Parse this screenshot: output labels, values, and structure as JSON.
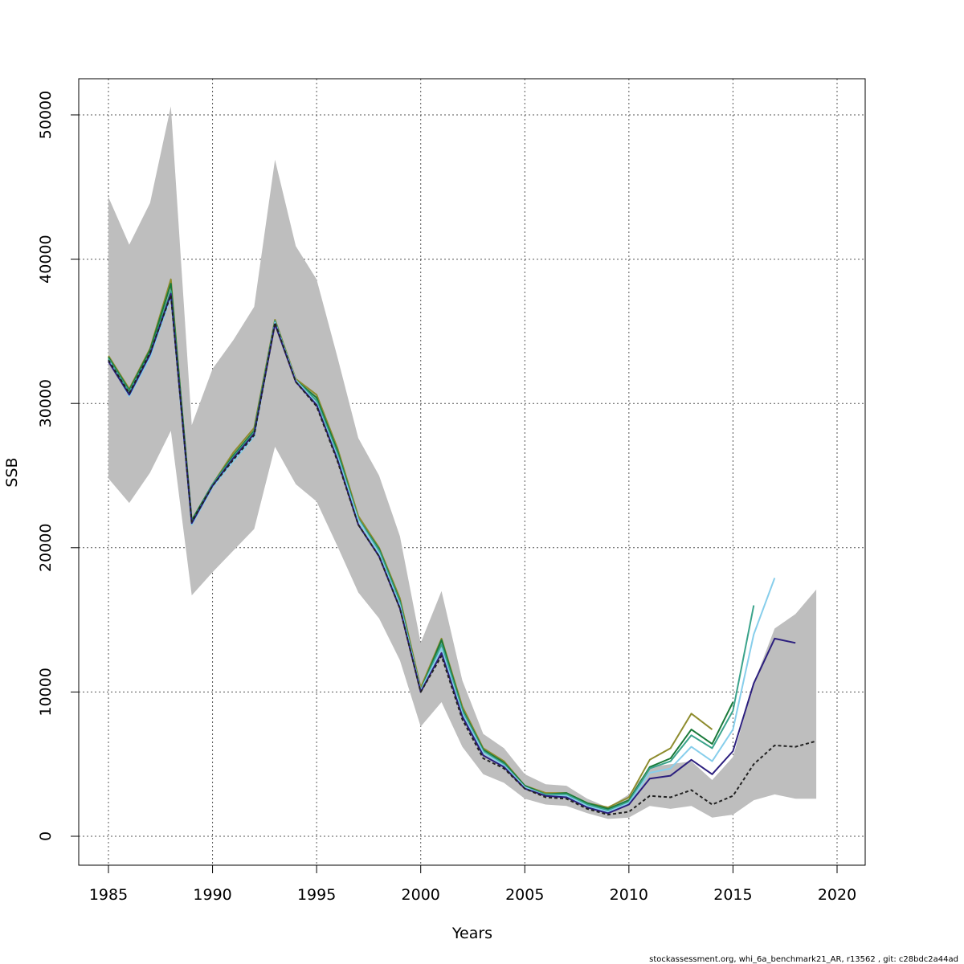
{
  "chart_data": {
    "type": "line",
    "title": "",
    "xlabel": "Years",
    "ylabel": "SSB",
    "xlim": [
      1985,
      2020
    ],
    "ylim": [
      0,
      50000
    ],
    "x_ticks": [
      1985,
      1990,
      1995,
      2000,
      2005,
      2010,
      2015,
      2020
    ],
    "y_ticks": [
      0,
      10000,
      20000,
      30000,
      40000,
      50000
    ],
    "grid": true,
    "grid_style": "dotted",
    "footer": "stockassessment.org, whi_6a_benchmark21_AR, r13562 , git: c28bdc2a44ad",
    "confidence_band": {
      "color": "#bebebe",
      "x": [
        1985,
        1986,
        1987,
        1988,
        1989,
        1990,
        1991,
        1992,
        1993,
        1994,
        1995,
        1996,
        1997,
        1998,
        1999,
        2000,
        2001,
        2002,
        2003,
        2004,
        2005,
        2006,
        2007,
        2008,
        2009,
        2010,
        2011,
        2012,
        2013,
        2014,
        2015,
        2016,
        2017,
        2018,
        2019
      ],
      "lower": [
        24800,
        23100,
        25200,
        28100,
        16700,
        18300,
        19800,
        21300,
        27000,
        24400,
        23200,
        20100,
        16900,
        15100,
        12200,
        7600,
        9300,
        6200,
        4300,
        3700,
        2600,
        2200,
        2100,
        1600,
        1200,
        1300,
        2100,
        1900,
        2100,
        1300,
        1500,
        2500,
        2900,
        2600,
        2600
      ],
      "upper": [
        44300,
        41000,
        43900,
        50600,
        28500,
        32400,
        34400,
        36700,
        46900,
        40900,
        38600,
        33200,
        27600,
        25000,
        20800,
        13400,
        17000,
        10800,
        7100,
        6100,
        4300,
        3600,
        3500,
        2600,
        2000,
        2900,
        4800,
        5000,
        5200,
        3900,
        5500,
        10600,
        14400,
        15400,
        17100
      ]
    },
    "series": [
      {
        "color": "#222222",
        "dashed": true,
        "x": [
          1985,
          1986,
          1987,
          1988,
          1989,
          1990,
          1991,
          1992,
          1993,
          1994,
          1995,
          1996,
          1997,
          1998,
          1999,
          2000,
          2001,
          2002,
          2003,
          2004,
          2005,
          2006,
          2007,
          2008,
          2009,
          2010,
          2011,
          2012,
          2013,
          2014,
          2015,
          2016,
          2017,
          2018,
          2019
        ],
        "values": [
          33000,
          30700,
          33500,
          37500,
          21800,
          24300,
          26100,
          27800,
          35600,
          31500,
          29800,
          26000,
          21600,
          19400,
          15800,
          10000,
          12500,
          8100,
          5400,
          4700,
          3300,
          2700,
          2600,
          1900,
          1500,
          1700,
          2800,
          2700,
          3200,
          2200,
          2800,
          5000,
          6300,
          6200,
          6600
        ]
      },
      {
        "color": "#2c1f7e",
        "x": [
          1985,
          1986,
          1987,
          1988,
          1989,
          1990,
          1991,
          1992,
          1993,
          1994,
          1995,
          1996,
          1997,
          1998,
          1999,
          2000,
          2001,
          2002,
          2003,
          2004,
          2005,
          2006,
          2007,
          2008,
          2009,
          2010,
          2011,
          2012,
          2013,
          2014,
          2015,
          2016,
          2017,
          2018
        ],
        "values": [
          32900,
          30600,
          33400,
          37600,
          21700,
          24300,
          26200,
          27900,
          35500,
          31500,
          29900,
          26100,
          21600,
          19400,
          15800,
          10000,
          12700,
          8300,
          5600,
          4800,
          3300,
          2800,
          2700,
          2000,
          1600,
          2200,
          4000,
          4200,
          5300,
          4300,
          5900,
          10600,
          13700,
          13400
        ]
      },
      {
        "color": "#87ceeb",
        "x": [
          1985,
          1986,
          1987,
          1988,
          1989,
          1990,
          1991,
          1992,
          1993,
          1994,
          1995,
          1996,
          1997,
          1998,
          1999,
          2000,
          2001,
          2002,
          2003,
          2004,
          2005,
          2006,
          2007,
          2008,
          2009,
          2010,
          2011,
          2012,
          2013,
          2014,
          2015,
          2016,
          2017
        ],
        "values": [
          33000,
          30500,
          33200,
          37400,
          21600,
          24200,
          26000,
          27700,
          35600,
          31600,
          30000,
          26300,
          21900,
          19600,
          16000,
          10100,
          13000,
          8500,
          5800,
          4900,
          3400,
          2800,
          2800,
          2100,
          1700,
          2300,
          4400,
          4700,
          6200,
          5200,
          7400,
          14000,
          17900
        ]
      },
      {
        "color": "#3aa38b",
        "x": [
          1985,
          1986,
          1987,
          1988,
          1989,
          1990,
          1991,
          1992,
          1993,
          1994,
          1995,
          1996,
          1997,
          1998,
          1999,
          2000,
          2001,
          2002,
          2003,
          2004,
          2005,
          2006,
          2007,
          2008,
          2009,
          2010,
          2011,
          2012,
          2013,
          2014,
          2015,
          2016
        ],
        "values": [
          33100,
          30800,
          33500,
          37800,
          21700,
          24400,
          26300,
          28000,
          35700,
          31600,
          30200,
          26500,
          22000,
          19800,
          16200,
          10100,
          13300,
          8700,
          5900,
          5000,
          3400,
          2900,
          2900,
          2200,
          1800,
          2400,
          4700,
          5200,
          7000,
          6100,
          8700,
          16000
        ]
      },
      {
        "color": "#1a7a3a",
        "x": [
          1985,
          1986,
          1987,
          1988,
          1989,
          1990,
          1991,
          1992,
          1993,
          1994,
          1995,
          1996,
          1997,
          1998,
          1999,
          2000,
          2001,
          2002,
          2003,
          2004,
          2005,
          2006,
          2007,
          2008,
          2009,
          2010,
          2011,
          2012,
          2013,
          2014,
          2015
        ],
        "values": [
          33200,
          30900,
          33700,
          38300,
          21900,
          24400,
          26400,
          28100,
          35700,
          31600,
          30400,
          26700,
          22000,
          19900,
          16300,
          10100,
          13600,
          8800,
          6000,
          5100,
          3500,
          2900,
          3000,
          2300,
          1900,
          2500,
          4800,
          5400,
          7400,
          6400,
          9300
        ]
      },
      {
        "color": "#8e8c2e",
        "x": [
          1985,
          1986,
          1987,
          1988,
          1989,
          1990,
          1991,
          1992,
          1993,
          1994,
          1995,
          1996,
          1997,
          1998,
          1999,
          2000,
          2001,
          2002,
          2003,
          2004,
          2005,
          2006,
          2007,
          2008,
          2009,
          2010,
          2011,
          2012,
          2013,
          2014
        ],
        "values": [
          33300,
          31000,
          33800,
          38600,
          21600,
          24400,
          26600,
          28300,
          35800,
          31700,
          30600,
          26900,
          22200,
          20000,
          16500,
          10300,
          13700,
          9000,
          6100,
          5200,
          3500,
          3000,
          3000,
          2300,
          2000,
          2700,
          5300,
          6100,
          8500,
          7400
        ]
      }
    ]
  }
}
